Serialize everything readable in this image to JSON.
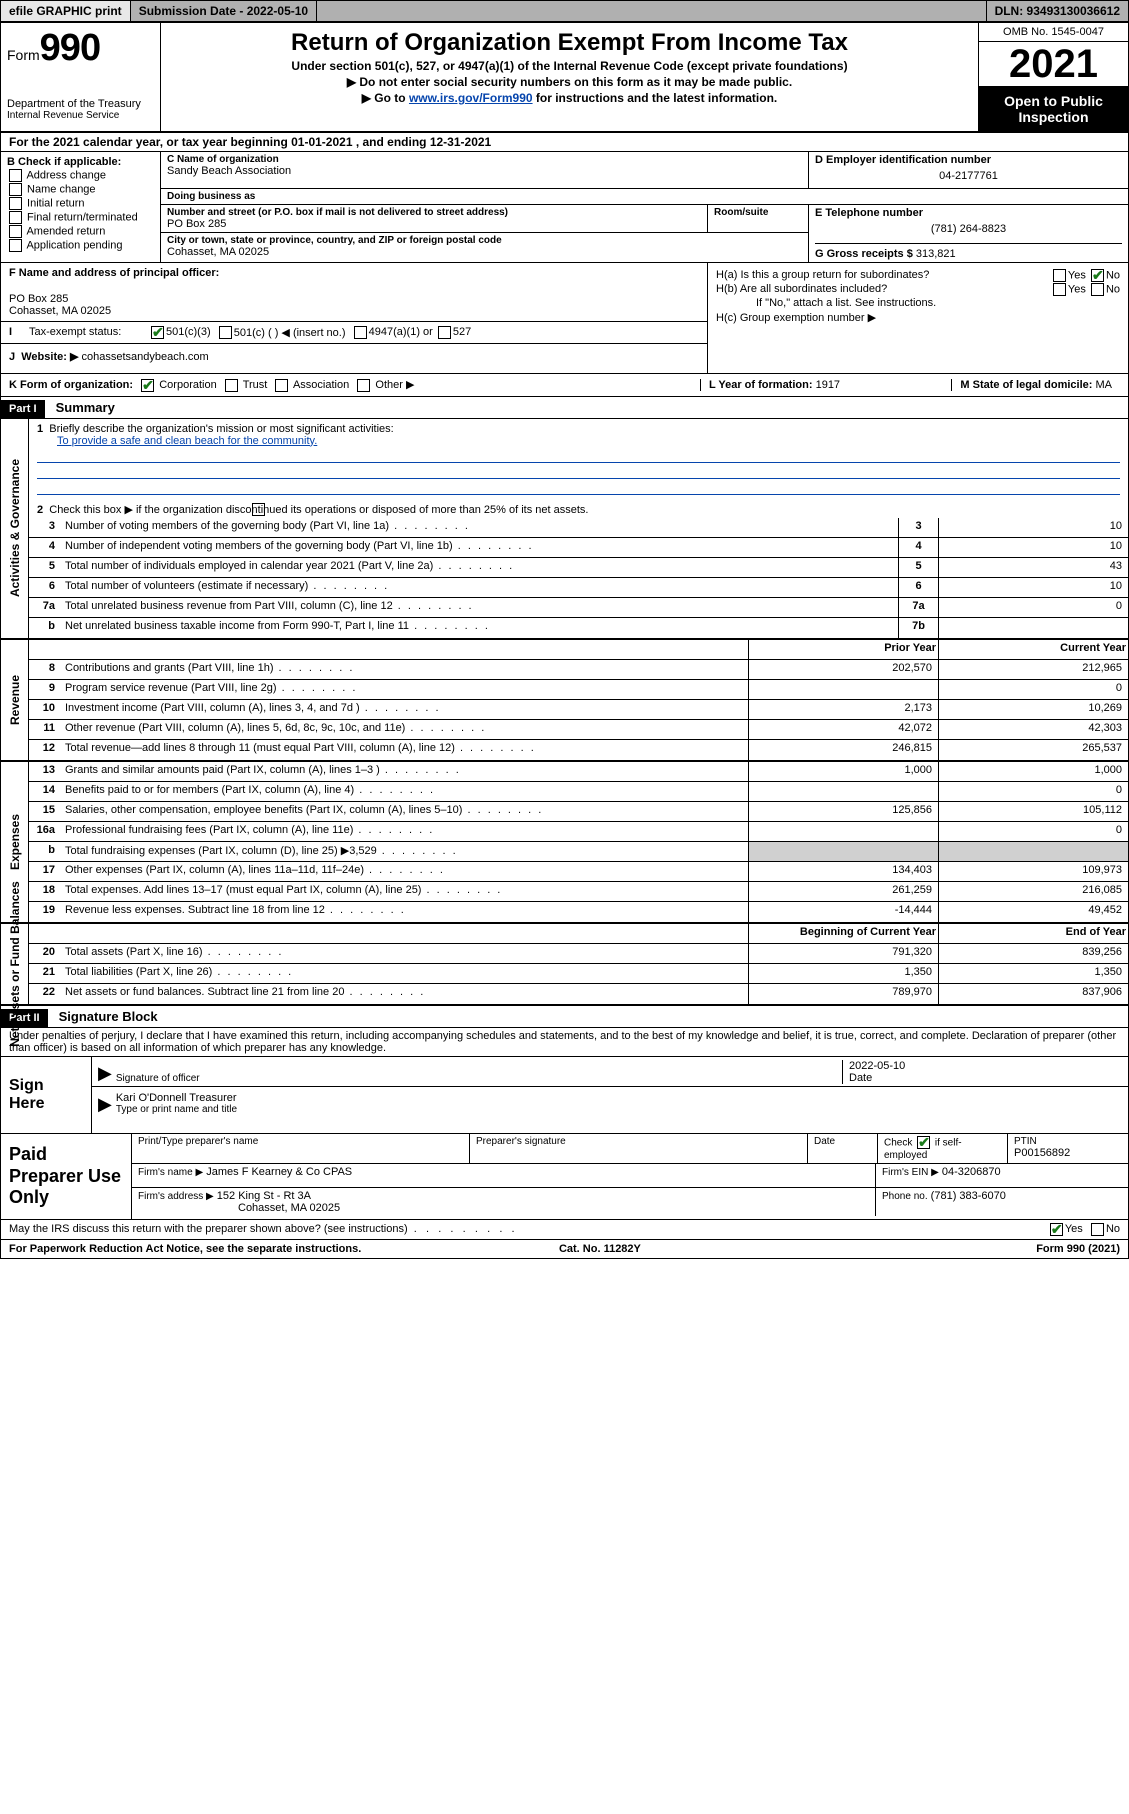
{
  "topbar": {
    "efile": "efile GRAPHIC print",
    "submission_label": "Submission Date - 2022-05-10",
    "dln_label": "DLN: 93493130036612"
  },
  "header": {
    "form_word": "Form",
    "form_num": "990",
    "dept": "Department of the Treasury",
    "irs": "Internal Revenue Service",
    "title": "Return of Organization Exempt From Income Tax",
    "sub1": "Under section 501(c), 527, or 4947(a)(1) of the Internal Revenue Code (except private foundations)",
    "sub2": "Do not enter social security numbers on this form as it may be made public.",
    "sub3_pre": "Go to ",
    "sub3_link": "www.irs.gov/Form990",
    "sub3_post": " for instructions and the latest information.",
    "omb": "OMB No. 1545-0047",
    "year": "2021",
    "open": "Open to Public Inspection"
  },
  "lineA": "For the 2021 calendar year, or tax year beginning 01-01-2021   , and ending 12-31-2021",
  "boxB": {
    "label": "B Check if applicable:",
    "opts": [
      "Address change",
      "Name change",
      "Initial return",
      "Final return/terminated",
      "Amended return",
      "Application pending"
    ]
  },
  "boxC": {
    "name_lbl": "C Name of organization",
    "name": "Sandy Beach Association",
    "dba_lbl": "Doing business as",
    "dba": "",
    "addr_lbl": "Number and street (or P.O. box if mail is not delivered to street address)",
    "suite_lbl": "Room/suite",
    "addr": "PO Box 285",
    "city_lbl": "City or town, state or province, country, and ZIP or foreign postal code",
    "city": "Cohasset, MA  02025"
  },
  "boxD": {
    "lbl": "D Employer identification number",
    "val": "04-2177761"
  },
  "boxE": {
    "lbl": "E Telephone number",
    "val": "(781) 264-8823"
  },
  "boxG": {
    "lbl": "G Gross receipts $",
    "val": "313,821"
  },
  "boxF": {
    "lbl": "F Name and address of principal officer:",
    "line1": "PO Box 285",
    "line2": "Cohasset, MA  02025"
  },
  "boxH": {
    "a": "H(a)  Is this a group return for subordinates?",
    "b": "H(b)  Are all subordinates included?",
    "b_note": "If \"No,\" attach a list. See instructions.",
    "c": "H(c)  Group exemption number ▶",
    "yes": "Yes",
    "no": "No"
  },
  "boxI": {
    "lbl": "Tax-exempt status:",
    "o1": "501(c)(3)",
    "o2": "501(c) (  ) ◀ (insert no.)",
    "o3": "4947(a)(1) or",
    "o4": "527"
  },
  "boxJ": {
    "lbl": "Website: ▶",
    "val": "cohassetsandybeach.com"
  },
  "boxK": {
    "lbl": "K Form of organization:",
    "o1": "Corporation",
    "o2": "Trust",
    "o3": "Association",
    "o4": "Other ▶"
  },
  "boxL": {
    "lbl": "L Year of formation:",
    "val": "1917"
  },
  "boxM": {
    "lbl": "M State of legal domicile:",
    "val": "MA"
  },
  "partI": {
    "hdr": "Part I",
    "title": "Summary",
    "q1_lbl": "Briefly describe the organization's mission or most significant activities:",
    "q1_val": "To provide a safe and clean beach for the community.",
    "q2": "Check this box ▶        if the organization discontinued its operations or disposed of more than 25% of its net assets.",
    "sideA": "Activities & Governance",
    "sideR": "Revenue",
    "sideE": "Expenses",
    "sideN": "Net Assets or Fund Balances",
    "rows_gov": [
      {
        "n": "3",
        "t": "Number of voting members of the governing body (Part VI, line 1a)",
        "c": "3",
        "v": "10"
      },
      {
        "n": "4",
        "t": "Number of independent voting members of the governing body (Part VI, line 1b)",
        "c": "4",
        "v": "10"
      },
      {
        "n": "5",
        "t": "Total number of individuals employed in calendar year 2021 (Part V, line 2a)",
        "c": "5",
        "v": "43"
      },
      {
        "n": "6",
        "t": "Total number of volunteers (estimate if necessary)",
        "c": "6",
        "v": "10"
      },
      {
        "n": "7a",
        "t": "Total unrelated business revenue from Part VIII, column (C), line 12",
        "c": "7a",
        "v": "0"
      },
      {
        "n": "b",
        "t": "Net unrelated business taxable income from Form 990-T, Part I, line 11",
        "c": "7b",
        "v": ""
      }
    ],
    "col_prior": "Prior Year",
    "col_curr": "Current Year",
    "rows_rev": [
      {
        "n": "8",
        "t": "Contributions and grants (Part VIII, line 1h)",
        "p": "202,570",
        "c": "212,965"
      },
      {
        "n": "9",
        "t": "Program service revenue (Part VIII, line 2g)",
        "p": "",
        "c": "0"
      },
      {
        "n": "10",
        "t": "Investment income (Part VIII, column (A), lines 3, 4, and 7d )",
        "p": "2,173",
        "c": "10,269"
      },
      {
        "n": "11",
        "t": "Other revenue (Part VIII, column (A), lines 5, 6d, 8c, 9c, 10c, and 11e)",
        "p": "42,072",
        "c": "42,303"
      },
      {
        "n": "12",
        "t": "Total revenue—add lines 8 through 11 (must equal Part VIII, column (A), line 12)",
        "p": "246,815",
        "c": "265,537"
      }
    ],
    "rows_exp": [
      {
        "n": "13",
        "t": "Grants and similar amounts paid (Part IX, column (A), lines 1–3 )",
        "p": "1,000",
        "c": "1,000"
      },
      {
        "n": "14",
        "t": "Benefits paid to or for members (Part IX, column (A), line 4)",
        "p": "",
        "c": "0"
      },
      {
        "n": "15",
        "t": "Salaries, other compensation, employee benefits (Part IX, column (A), lines 5–10)",
        "p": "125,856",
        "c": "105,112"
      },
      {
        "n": "16a",
        "t": "Professional fundraising fees (Part IX, column (A), line 11e)",
        "p": "",
        "c": "0"
      },
      {
        "n": "b",
        "t": "Total fundraising expenses (Part IX, column (D), line 25) ▶3,529",
        "p": "shade",
        "c": "shade"
      },
      {
        "n": "17",
        "t": "Other expenses (Part IX, column (A), lines 11a–11d, 11f–24e)",
        "p": "134,403",
        "c": "109,973"
      },
      {
        "n": "18",
        "t": "Total expenses. Add lines 13–17 (must equal Part IX, column (A), line 25)",
        "p": "261,259",
        "c": "216,085"
      },
      {
        "n": "19",
        "t": "Revenue less expenses. Subtract line 18 from line 12",
        "p": "-14,444",
        "c": "49,452"
      }
    ],
    "col_beg": "Beginning of Current Year",
    "col_end": "End of Year",
    "rows_net": [
      {
        "n": "20",
        "t": "Total assets (Part X, line 16)",
        "p": "791,320",
        "c": "839,256"
      },
      {
        "n": "21",
        "t": "Total liabilities (Part X, line 26)",
        "p": "1,350",
        "c": "1,350"
      },
      {
        "n": "22",
        "t": "Net assets or fund balances. Subtract line 21 from line 20",
        "p": "789,970",
        "c": "837,906"
      }
    ]
  },
  "partII": {
    "hdr": "Part II",
    "title": "Signature Block",
    "decl": "Under penalties of perjury, I declare that I have examined this return, including accompanying schedules and statements, and to the best of my knowledge and belief, it is true, correct, and complete. Declaration of preparer (other than officer) is based on all information of which preparer has any knowledge.",
    "sign_here": "Sign Here",
    "sig_officer": "Signature of officer",
    "date_lbl": "Date",
    "date_val": "2022-05-10",
    "name_title": "Kari O'Donnell  Treasurer",
    "name_cap": "Type or print name and title",
    "paid": "Paid Preparer Use Only",
    "pt_name_lbl": "Print/Type preparer's name",
    "pt_sig_lbl": "Preparer's signature",
    "pt_date_lbl": "Date",
    "pt_check": "Check          if self-employed",
    "ptin_lbl": "PTIN",
    "ptin": "P00156892",
    "firm_name_lbl": "Firm's name    ▶",
    "firm_name": "James F Kearney & Co CPAS",
    "firm_ein_lbl": "Firm's EIN ▶",
    "firm_ein": "04-3206870",
    "firm_addr_lbl": "Firm's address ▶",
    "firm_addr1": "152 King St - Rt 3A",
    "firm_addr2": "Cohasset, MA  02025",
    "phone_lbl": "Phone no.",
    "phone": "(781) 383-6070",
    "may": "May the IRS discuss this return with the preparer shown above? (see instructions)",
    "yes": "Yes",
    "no": "No"
  },
  "footer": {
    "l": "For Paperwork Reduction Act Notice, see the separate instructions.",
    "m": "Cat. No. 11282Y",
    "r": "Form 990 (2021)"
  }
}
